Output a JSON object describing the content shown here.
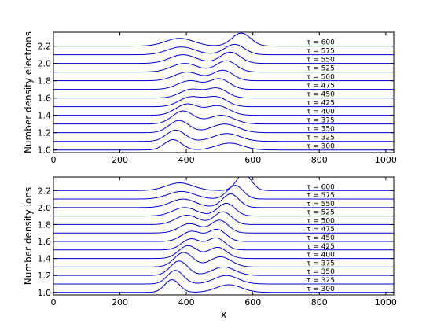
{
  "chart_data": [
    {
      "type": "line",
      "id": "electrons",
      "title": "",
      "xlabel": "",
      "ylabel": "Number density electrons",
      "xlim": [
        0,
        1024
      ],
      "ylim": [
        0.97,
        2.36
      ],
      "xticks": [
        0,
        200,
        400,
        600,
        800,
        1000
      ],
      "yticks": [
        1.0,
        1.2,
        1.4,
        1.6,
        1.8,
        2.0,
        2.2
      ],
      "xtick_labels": [
        "0",
        "200",
        "400",
        "600",
        "800",
        "1000"
      ],
      "ytick_labels": [
        "1.0",
        "1.2",
        "1.4",
        "1.6",
        "1.8",
        "2.0",
        "2.2"
      ],
      "grid": false,
      "line_color": "#0000cc",
      "series": [
        {
          "name": "τ = 300",
          "baseline": 1.0,
          "peaks": [
            {
              "x": 360,
              "height": 0.12,
              "width": 26
            },
            {
              "x": 530,
              "height": 0.08,
              "width": 40
            }
          ]
        },
        {
          "name": "τ = 325",
          "baseline": 1.1,
          "peaks": [
            {
              "x": 368,
              "height": 0.13,
              "width": 28
            },
            {
              "x": 522,
              "height": 0.09,
              "width": 40
            }
          ]
        },
        {
          "name": "τ = 350",
          "baseline": 1.2,
          "peaks": [
            {
              "x": 378,
              "height": 0.14,
              "width": 30
            },
            {
              "x": 515,
              "height": 0.1,
              "width": 40
            }
          ]
        },
        {
          "name": "τ = 375",
          "baseline": 1.3,
          "peaks": [
            {
              "x": 390,
              "height": 0.15,
              "width": 32
            },
            {
              "x": 505,
              "height": 0.1,
              "width": 38
            }
          ]
        },
        {
          "name": "τ = 400",
          "baseline": 1.4,
          "peaks": [
            {
              "x": 402,
              "height": 0.13,
              "width": 34
            },
            {
              "x": 495,
              "height": 0.11,
              "width": 34
            }
          ]
        },
        {
          "name": "τ = 425",
          "baseline": 1.5,
          "peaks": [
            {
              "x": 412,
              "height": 0.11,
              "width": 34
            },
            {
              "x": 490,
              "height": 0.11,
              "width": 32
            }
          ]
        },
        {
          "name": "τ = 450",
          "baseline": 1.6,
          "peaks": [
            {
              "x": 415,
              "height": 0.1,
              "width": 34
            },
            {
              "x": 493,
              "height": 0.11,
              "width": 30
            }
          ]
        },
        {
          "name": "τ = 475",
          "baseline": 1.7,
          "peaks": [
            {
              "x": 410,
              "height": 0.1,
              "width": 36
            },
            {
              "x": 500,
              "height": 0.12,
              "width": 30
            }
          ]
        },
        {
          "name": "τ = 500",
          "baseline": 1.8,
          "peaks": [
            {
              "x": 402,
              "height": 0.1,
              "width": 38
            },
            {
              "x": 510,
              "height": 0.12,
              "width": 30
            }
          ]
        },
        {
          "name": "τ = 525",
          "baseline": 1.9,
          "peaks": [
            {
              "x": 395,
              "height": 0.1,
              "width": 40
            },
            {
              "x": 520,
              "height": 0.13,
              "width": 30
            }
          ]
        },
        {
          "name": "τ = 550",
          "baseline": 2.0,
          "peaks": [
            {
              "x": 390,
              "height": 0.1,
              "width": 40
            },
            {
              "x": 532,
              "height": 0.13,
              "width": 30
            }
          ]
        },
        {
          "name": "τ = 575",
          "baseline": 2.1,
          "peaks": [
            {
              "x": 385,
              "height": 0.09,
              "width": 42
            },
            {
              "x": 545,
              "height": 0.12,
              "width": 30
            }
          ]
        },
        {
          "name": "τ = 600",
          "baseline": 2.2,
          "peaks": [
            {
              "x": 380,
              "height": 0.09,
              "width": 42
            },
            {
              "x": 565,
              "height": 0.15,
              "width": 28
            }
          ]
        }
      ]
    },
    {
      "type": "line",
      "id": "ions",
      "title": "",
      "xlabel": "x",
      "ylabel": "Number density ions",
      "xlim": [
        0,
        1024
      ],
      "ylim": [
        0.97,
        2.36
      ],
      "xticks": [
        0,
        200,
        400,
        600,
        800,
        1000
      ],
      "yticks": [
        1.0,
        1.2,
        1.4,
        1.6,
        1.8,
        2.0,
        2.2
      ],
      "xtick_labels": [
        "0",
        "200",
        "400",
        "600",
        "800",
        "1000"
      ],
      "ytick_labels": [
        "1.0",
        "1.2",
        "1.4",
        "1.6",
        "1.8",
        "2.0",
        "2.2"
      ],
      "grid": false,
      "line_color": "#0000cc",
      "series": [
        {
          "name": "τ = 300",
          "baseline": 1.0,
          "peaks": [
            {
              "x": 357,
              "height": 0.15,
              "width": 22
            },
            {
              "x": 528,
              "height": 0.09,
              "width": 38
            }
          ]
        },
        {
          "name": "τ = 325",
          "baseline": 1.1,
          "peaks": [
            {
              "x": 367,
              "height": 0.16,
              "width": 24
            },
            {
              "x": 520,
              "height": 0.1,
              "width": 36
            }
          ]
        },
        {
          "name": "τ = 350",
          "baseline": 1.2,
          "peaks": [
            {
              "x": 378,
              "height": 0.17,
              "width": 26
            },
            {
              "x": 512,
              "height": 0.1,
              "width": 34
            }
          ]
        },
        {
          "name": "τ = 375",
          "baseline": 1.3,
          "peaks": [
            {
              "x": 392,
              "height": 0.17,
              "width": 28
            },
            {
              "x": 503,
              "height": 0.12,
              "width": 32
            }
          ]
        },
        {
          "name": "τ = 400",
          "baseline": 1.4,
          "peaks": [
            {
              "x": 405,
              "height": 0.15,
              "width": 28
            },
            {
              "x": 494,
              "height": 0.13,
              "width": 28
            }
          ]
        },
        {
          "name": "τ = 425",
          "baseline": 1.5,
          "peaks": [
            {
              "x": 414,
              "height": 0.13,
              "width": 28
            },
            {
              "x": 490,
              "height": 0.14,
              "width": 26
            }
          ]
        },
        {
          "name": "τ = 450",
          "baseline": 1.6,
          "peaks": [
            {
              "x": 416,
              "height": 0.12,
              "width": 30
            },
            {
              "x": 493,
              "height": 0.14,
              "width": 26
            }
          ]
        },
        {
          "name": "τ = 475",
          "baseline": 1.7,
          "peaks": [
            {
              "x": 410,
              "height": 0.11,
              "width": 32
            },
            {
              "x": 500,
              "height": 0.15,
              "width": 26
            }
          ]
        },
        {
          "name": "τ = 500",
          "baseline": 1.8,
          "peaks": [
            {
              "x": 402,
              "height": 0.11,
              "width": 34
            },
            {
              "x": 510,
              "height": 0.15,
              "width": 26
            }
          ]
        },
        {
          "name": "τ = 525",
          "baseline": 1.9,
          "peaks": [
            {
              "x": 395,
              "height": 0.1,
              "width": 36
            },
            {
              "x": 520,
              "height": 0.15,
              "width": 26
            }
          ]
        },
        {
          "name": "τ = 550",
          "baseline": 2.0,
          "peaks": [
            {
              "x": 390,
              "height": 0.1,
              "width": 38
            },
            {
              "x": 533,
              "height": 0.16,
              "width": 25
            }
          ]
        },
        {
          "name": "τ = 575",
          "baseline": 2.1,
          "peaks": [
            {
              "x": 385,
              "height": 0.09,
              "width": 40
            },
            {
              "x": 547,
              "height": 0.16,
              "width": 24
            }
          ]
        },
        {
          "name": "τ = 600",
          "baseline": 2.2,
          "peaks": [
            {
              "x": 380,
              "height": 0.09,
              "width": 40
            },
            {
              "x": 573,
              "height": 0.2,
              "width": 22
            }
          ]
        }
      ]
    }
  ]
}
